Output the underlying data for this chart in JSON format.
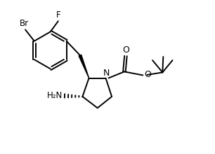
{
  "bg_color": "#ffffff",
  "line_color": "#000000",
  "lw": 1.4,
  "fs": 8.5,
  "xlim": [
    0.0,
    5.8
  ],
  "ylim": [
    0.5,
    4.8
  ]
}
